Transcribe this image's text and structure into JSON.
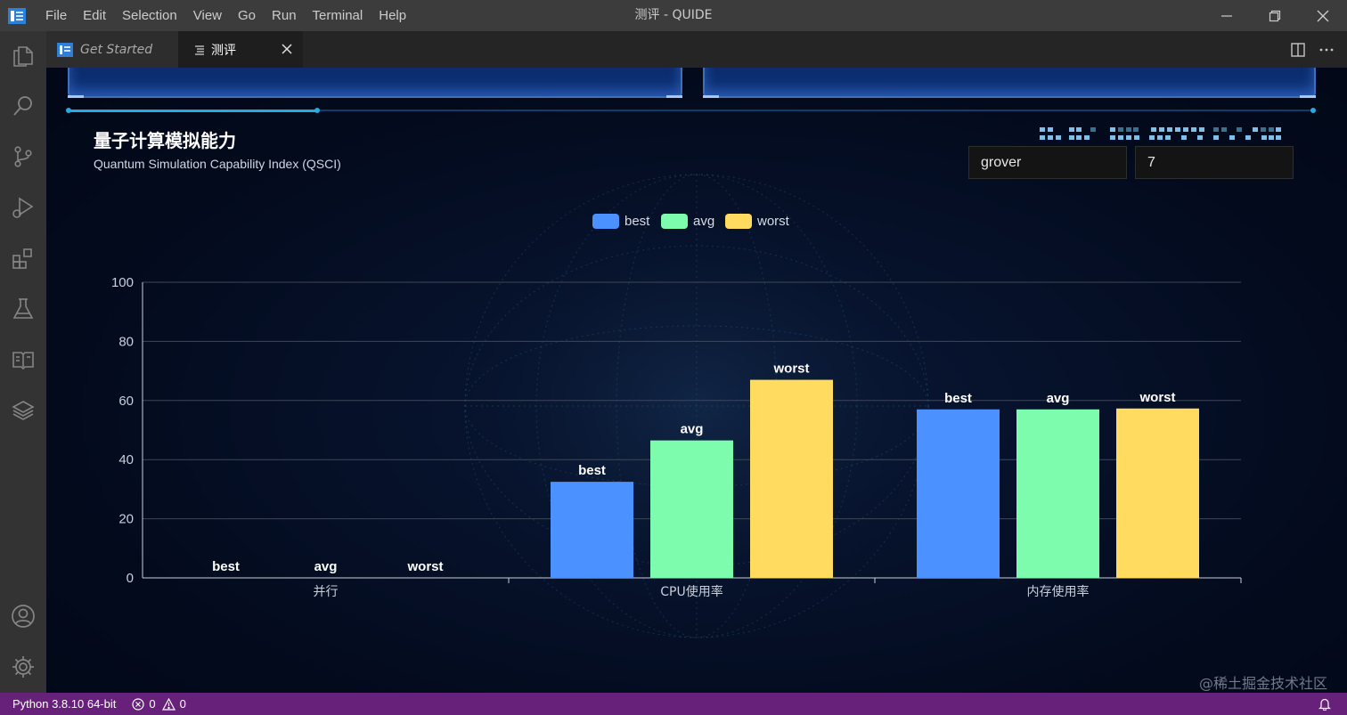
{
  "window": {
    "title": "测评 - QUIDE",
    "menu": [
      "File",
      "Edit",
      "Selection",
      "View",
      "Go",
      "Run",
      "Terminal",
      "Help"
    ]
  },
  "activity_bar": {
    "icons": [
      "explorer-icon",
      "search-icon",
      "source-control-icon",
      "run-debug-icon",
      "extensions-icon",
      "testing-icon",
      "book-icon",
      "layers-icon",
      "account-icon",
      "settings-gear-icon"
    ]
  },
  "tabs": [
    {
      "label": "Get Started",
      "active": false
    },
    {
      "label": "测评",
      "active": true
    }
  ],
  "section": {
    "title": "量子计算模拟能力",
    "subtitle": "Quantum Simulation Capability Index (QSCI)"
  },
  "inputs": {
    "algorithm": "grover",
    "qubits": "7"
  },
  "chart_data": {
    "type": "bar",
    "categories": [
      "并行",
      "CPU使用率",
      "内存使用率"
    ],
    "series": [
      {
        "name": "best",
        "color": "#4b91ff",
        "values": [
          0,
          32.5,
          57
        ]
      },
      {
        "name": "avg",
        "color": "#7dfcad",
        "values": [
          0,
          46.5,
          57
        ]
      },
      {
        "name": "worst",
        "color": "#ffdc60",
        "values": [
          0,
          67,
          57.3
        ]
      }
    ],
    "yticks": [
      "0",
      "20",
      "40",
      "60",
      "80",
      "100"
    ],
    "ylim": [
      0,
      100
    ],
    "legend_position": "top-center",
    "grid": true,
    "data_labels": "series-name"
  },
  "statusbar": {
    "python": "Python 3.8.10 64-bit",
    "errors": "0",
    "warnings": "0"
  },
  "watermark": "@稀土掘金技术社区"
}
